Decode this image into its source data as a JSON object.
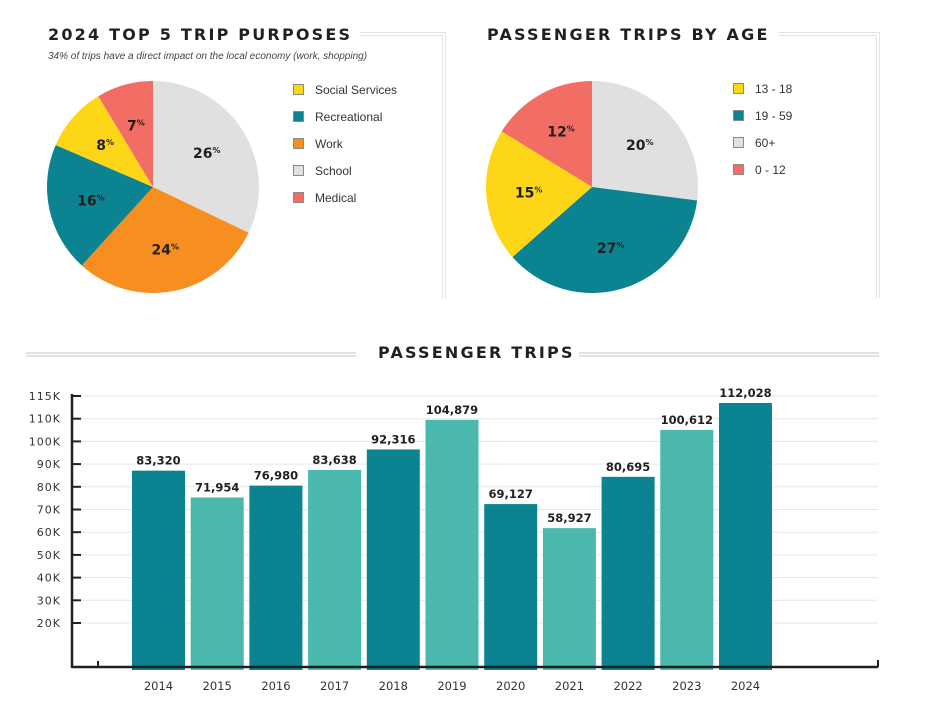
{
  "colors": {
    "yellow": "#fcd617",
    "teal": "#0b8390",
    "orange": "#f68f1f",
    "gray": "#dfe0df",
    "salmon": "#f26d63",
    "light_teal": "#4ab8ad",
    "axis": "#231f20",
    "grid": "#e6e6e6"
  },
  "chart_data": [
    {
      "type": "pie",
      "title": "2024 TOP 5 TRIP PURPOSES",
      "subtitle": "34% of trips have a direct impact on the local economy (work, shopping)",
      "legend_position": "right",
      "slices": [
        {
          "label": "School",
          "value": 26,
          "display": "26",
          "color": "#dfe0df"
        },
        {
          "label": "Work",
          "value": 24,
          "display": "24",
          "color": "#f68f1f"
        },
        {
          "label": "Recreational",
          "value": 16,
          "display": "16",
          "color": "#0b8390"
        },
        {
          "label": "Social Services",
          "value": 8,
          "display": "8",
          "color": "#fcd617"
        },
        {
          "label": "Medical",
          "value": 7,
          "display": "7",
          "color": "#f26d63"
        }
      ],
      "legend": [
        {
          "label": "Social Services",
          "color": "#fcd617"
        },
        {
          "label": "Recreational",
          "color": "#0b8390"
        },
        {
          "label": "Work",
          "color": "#f68f1f"
        },
        {
          "label": "School",
          "color": "#dfe0df"
        },
        {
          "label": "Medical",
          "color": "#f26d63"
        }
      ],
      "unit_suffix": "%"
    },
    {
      "type": "pie",
      "title": "PASSENGER TRIPS BY AGE",
      "legend_position": "right",
      "slices": [
        {
          "label": "60+",
          "value": 20,
          "display": "20",
          "color": "#dfe0df"
        },
        {
          "label": "19 - 59",
          "value": 27,
          "display": "27",
          "color": "#0b8390"
        },
        {
          "label": "13 - 18",
          "value": 15,
          "display": "15",
          "color": "#fcd617"
        },
        {
          "label": "0 - 12",
          "value": 12,
          "display": "12",
          "color": "#f26d63"
        }
      ],
      "legend": [
        {
          "label": "13 - 18",
          "color": "#fcd617"
        },
        {
          "label": "19 - 59",
          "color": "#0b8390"
        },
        {
          "label": "60+",
          "color": "#dfe0df"
        },
        {
          "label": "0 - 12",
          "color": "#f26d63"
        }
      ],
      "unit_suffix": "%"
    },
    {
      "type": "bar",
      "title": "PASSENGER TRIPS",
      "xlabel": "",
      "ylabel": "",
      "grid": true,
      "ylim": [
        0,
        115000
      ],
      "y_tick_labels": [
        "115K",
        "110K",
        "100K",
        "90K",
        "80K",
        "70K",
        "60K",
        "50K",
        "40K",
        "30K",
        "20K"
      ],
      "categories": [
        "2014",
        "2015",
        "2016",
        "2017",
        "2018",
        "2019",
        "2020",
        "2021",
        "2022",
        "2023",
        "2024"
      ],
      "values": [
        83320,
        71954,
        76980,
        83638,
        92316,
        104879,
        69127,
        58927,
        80695,
        100612,
        112028
      ],
      "value_labels": [
        "83,320",
        "71,954",
        "76,980",
        "83,638",
        "92,316",
        "104,879",
        "69,127",
        "58,927",
        "80,695",
        "100,612",
        "112,028"
      ],
      "bar_colors": [
        "#0b8390",
        "#4ab8ad"
      ]
    }
  ]
}
